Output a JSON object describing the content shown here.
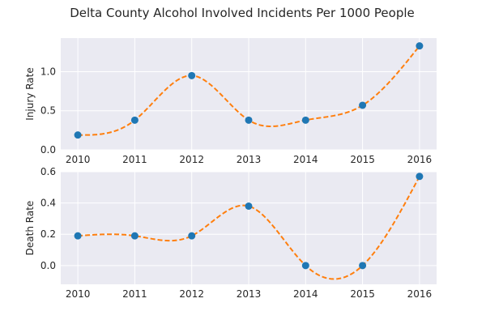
{
  "title": "Delta County Alcohol Involved Incidents Per 1000 People",
  "colors": {
    "background": "#ffffff",
    "plot_bg": "#eaeaf2",
    "grid": "#ffffff",
    "marker": "#1f77b4",
    "curve": "#ff7f0e",
    "text": "#262626"
  },
  "chart_data": [
    {
      "type": "line",
      "title": "Delta County Alcohol Involved Incidents Per 1000 People",
      "x": [
        2010,
        2011,
        2012,
        2013,
        2014,
        2015,
        2016
      ],
      "ylabel": "Injury Rate",
      "xlabel": "",
      "xlim": [
        2009.7,
        2016.3
      ],
      "ylim": [
        0,
        1.43
      ],
      "xticks": [
        "2010",
        "2011",
        "2012",
        "2013",
        "2014",
        "2015",
        "2016"
      ],
      "yticks": [
        "0.0",
        "0.5",
        "1.0"
      ],
      "ytick_values": [
        0,
        0.5,
        1.0
      ],
      "grid": true,
      "series": [
        {
          "style": "markers-with-dashed-spline",
          "values": [
            0.19,
            0.38,
            0.95,
            0.38,
            0.38,
            0.57,
            1.33
          ]
        }
      ]
    },
    {
      "type": "line",
      "x": [
        2010,
        2011,
        2012,
        2013,
        2014,
        2015,
        2016
      ],
      "ylabel": "Death Rate",
      "xlabel": "",
      "xlim": [
        2009.7,
        2016.3
      ],
      "ylim": [
        -0.12,
        0.6
      ],
      "xticks": [
        "2010",
        "2011",
        "2012",
        "2013",
        "2014",
        "2015",
        "2016"
      ],
      "yticks": [
        "0.0",
        "0.2",
        "0.4",
        "0.6"
      ],
      "ytick_values": [
        0,
        0.2,
        0.4,
        0.6
      ],
      "grid": true,
      "series": [
        {
          "style": "markers-with-dashed-spline",
          "values": [
            0.19,
            0.19,
            0.19,
            0.38,
            0.0,
            0.0,
            0.57
          ]
        }
      ]
    }
  ]
}
